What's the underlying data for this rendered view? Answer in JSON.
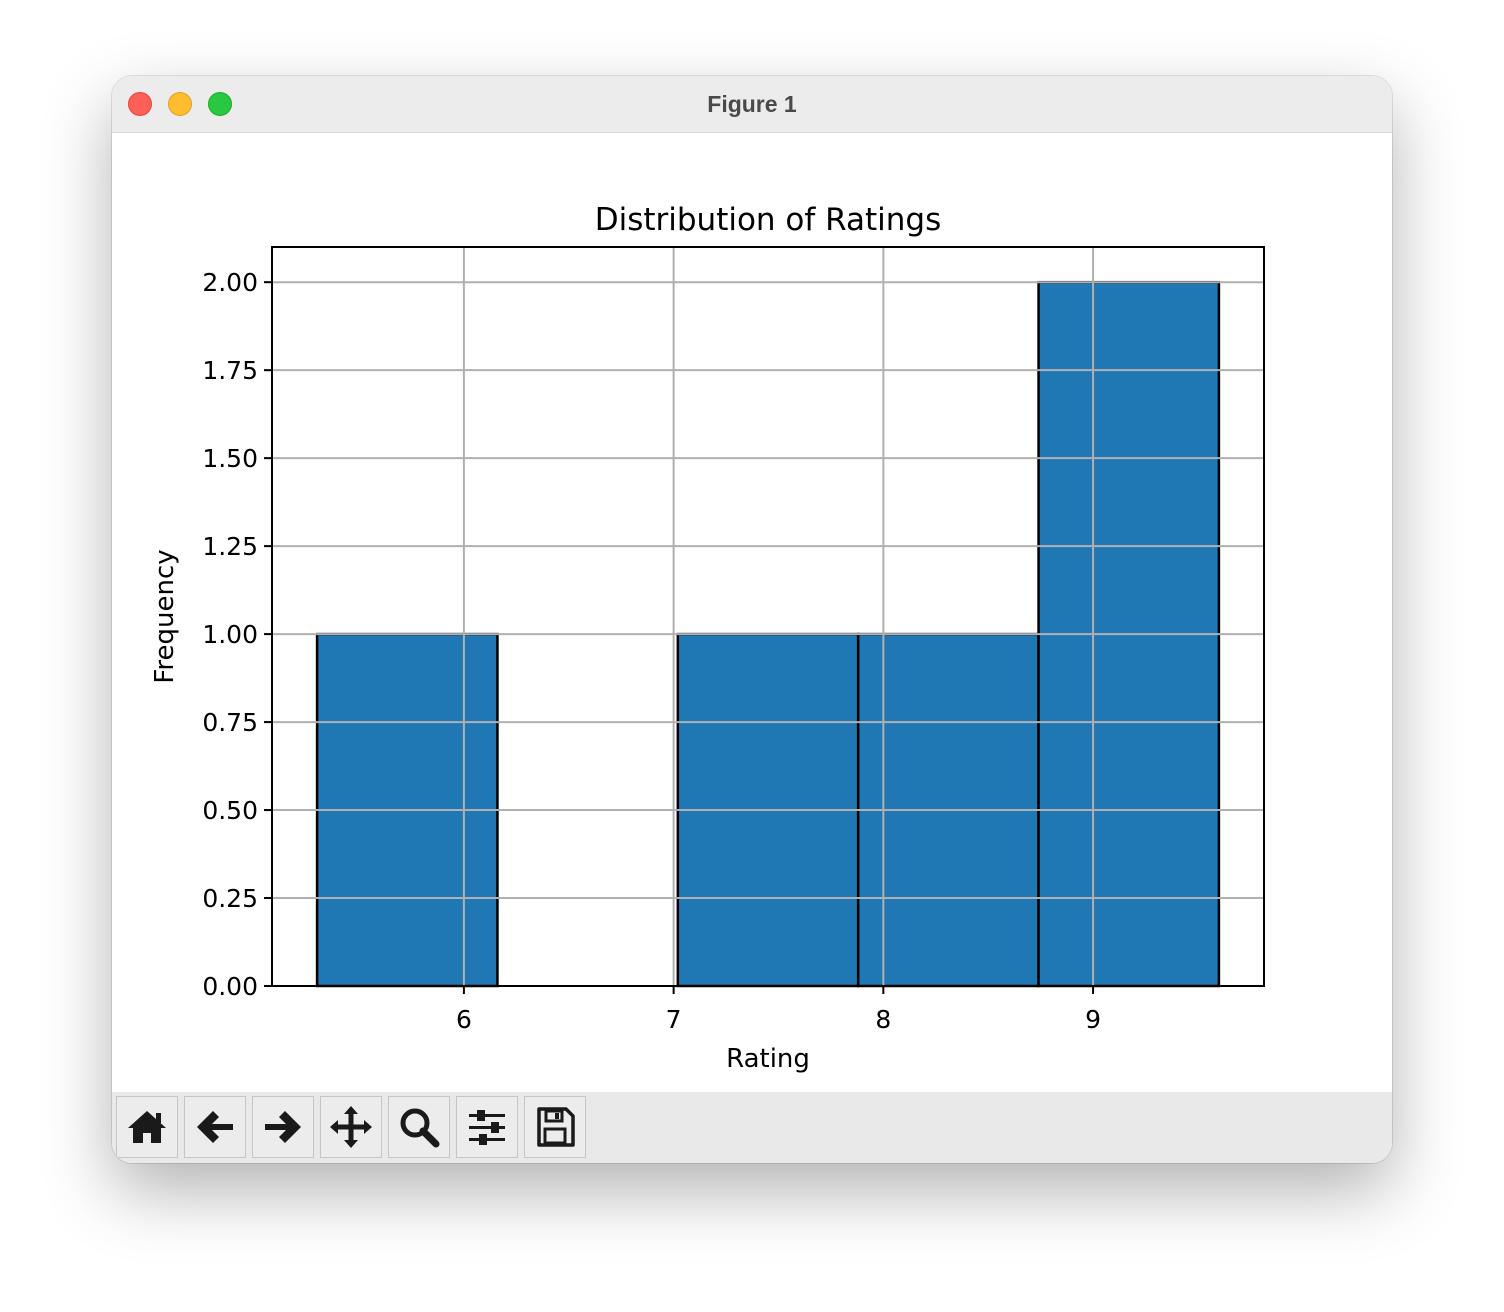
{
  "window": {
    "title": "Figure 1"
  },
  "toolbar": {
    "buttons": [
      {
        "name": "home",
        "icon": "home-icon"
      },
      {
        "name": "back",
        "icon": "arrow-left-icon"
      },
      {
        "name": "forward",
        "icon": "arrow-right-icon"
      },
      {
        "name": "pan",
        "icon": "move-icon"
      },
      {
        "name": "zoom",
        "icon": "magnifier-icon"
      },
      {
        "name": "configure-subplots",
        "icon": "sliders-icon"
      },
      {
        "name": "save",
        "icon": "floppy-disk-icon"
      }
    ]
  },
  "chart_data": {
    "type": "bar",
    "title": "Distribution of Ratings",
    "xlabel": "Rating",
    "ylabel": "Frequency",
    "bins": [
      {
        "start": 5.3,
        "end": 6.16,
        "count": 1
      },
      {
        "start": 6.16,
        "end": 7.02,
        "count": 0
      },
      {
        "start": 7.02,
        "end": 7.88,
        "count": 1
      },
      {
        "start": 7.88,
        "end": 8.74,
        "count": 1
      },
      {
        "start": 8.74,
        "end": 9.6,
        "count": 2
      }
    ],
    "xlim": [
      5.085,
      9.815
    ],
    "ylim": [
      0,
      2.1
    ],
    "xticks": [
      6,
      7,
      8,
      9
    ],
    "xtick_labels": [
      "6",
      "7",
      "8",
      "9"
    ],
    "yticks": [
      0,
      0.25,
      0.5,
      0.75,
      1.0,
      1.25,
      1.5,
      1.75,
      2.0
    ],
    "ytick_labels": [
      "0.00",
      "0.25",
      "0.50",
      "0.75",
      "1.00",
      "1.25",
      "1.50",
      "1.75",
      "2.00"
    ],
    "grid": true,
    "bar_color": "#1f77b4",
    "edge_color": "#000000",
    "grid_color": "#b0b0b0"
  }
}
